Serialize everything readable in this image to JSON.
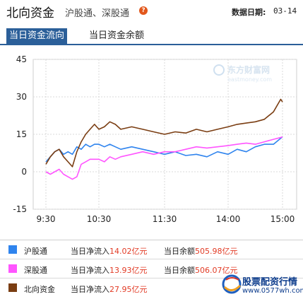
{
  "header": {
    "title": "北向资金",
    "subtitle": "沪股通、深股通",
    "help": "?",
    "date_label": "数据日期:",
    "date_value": "03-14"
  },
  "tabs": [
    {
      "label": "当日资金流向",
      "active": true
    },
    {
      "label": "当日资金余额",
      "active": false
    }
  ],
  "colors": {
    "hgt": "#2f84ee",
    "sgt": "#ff55ff",
    "north": "#7a3d12",
    "accent": "#2b5f99",
    "value_red": "#e23b25"
  },
  "watermark": {
    "brand": "东方财富网",
    "url": "eastmoney.com"
  },
  "chart_data": {
    "type": "line",
    "xlabel": "",
    "ylabel": "",
    "x_ticks": [
      "9:30",
      "10:30",
      "11:30",
      "14:00",
      "15:00"
    ],
    "y_ticks": [
      45,
      30,
      15,
      0,
      -15
    ],
    "ylim": [
      -15,
      45
    ],
    "grid": true,
    "series": [
      {
        "name": "沪股通",
        "color": "#2f84ee",
        "points": [
          [
            0,
            4
          ],
          [
            5,
            6
          ],
          [
            10,
            8
          ],
          [
            15,
            9
          ],
          [
            20,
            7
          ],
          [
            25,
            8
          ],
          [
            30,
            7
          ],
          [
            35,
            10
          ],
          [
            40,
            9
          ],
          [
            45,
            11
          ],
          [
            50,
            10
          ],
          [
            55,
            11
          ],
          [
            60,
            11
          ],
          [
            65,
            10
          ],
          [
            70,
            11
          ],
          [
            75,
            10
          ],
          [
            80,
            9
          ],
          [
            90,
            10
          ],
          [
            100,
            9
          ],
          [
            110,
            8
          ],
          [
            120,
            7
          ],
          [
            130,
            8
          ],
          [
            140,
            6.5
          ],
          [
            150,
            7
          ],
          [
            160,
            6
          ],
          [
            170,
            8
          ],
          [
            180,
            7
          ],
          [
            190,
            9
          ],
          [
            200,
            8
          ],
          [
            210,
            10
          ],
          [
            220,
            11
          ],
          [
            230,
            11
          ],
          [
            240,
            14.02
          ]
        ]
      },
      {
        "name": "深股通",
        "color": "#ff55ff",
        "points": [
          [
            0,
            0
          ],
          [
            5,
            -1
          ],
          [
            10,
            0
          ],
          [
            15,
            1
          ],
          [
            20,
            -1
          ],
          [
            25,
            -2
          ],
          [
            30,
            -3
          ],
          [
            35,
            -2
          ],
          [
            40,
            3
          ],
          [
            45,
            4
          ],
          [
            50,
            5
          ],
          [
            55,
            5
          ],
          [
            60,
            5
          ],
          [
            65,
            4
          ],
          [
            70,
            6
          ],
          [
            75,
            5
          ],
          [
            80,
            6
          ],
          [
            90,
            7
          ],
          [
            100,
            8
          ],
          [
            110,
            7
          ],
          [
            120,
            8
          ],
          [
            130,
            8
          ],
          [
            140,
            9
          ],
          [
            150,
            10
          ],
          [
            160,
            9.5
          ],
          [
            170,
            10
          ],
          [
            180,
            10.5
          ],
          [
            190,
            11
          ],
          [
            200,
            11.5
          ],
          [
            210,
            11
          ],
          [
            220,
            12
          ],
          [
            230,
            13
          ],
          [
            240,
            13.93
          ]
        ]
      },
      {
        "name": "北向资金",
        "color": "#7a3d12",
        "points": [
          [
            0,
            3
          ],
          [
            5,
            6
          ],
          [
            10,
            8
          ],
          [
            15,
            9
          ],
          [
            20,
            6
          ],
          [
            25,
            4
          ],
          [
            30,
            2
          ],
          [
            35,
            8
          ],
          [
            40,
            12
          ],
          [
            45,
            15
          ],
          [
            50,
            17
          ],
          [
            55,
            19
          ],
          [
            60,
            17
          ],
          [
            65,
            18
          ],
          [
            70,
            20
          ],
          [
            75,
            19
          ],
          [
            80,
            17
          ],
          [
            90,
            18
          ],
          [
            100,
            17
          ],
          [
            110,
            16
          ],
          [
            120,
            15
          ],
          [
            130,
            16
          ],
          [
            140,
            15.5
          ],
          [
            150,
            17
          ],
          [
            160,
            16
          ],
          [
            170,
            17
          ],
          [
            180,
            18
          ],
          [
            190,
            19
          ],
          [
            200,
            19.5
          ],
          [
            210,
            20
          ],
          [
            220,
            21
          ],
          [
            230,
            24
          ],
          [
            238,
            29
          ],
          [
            240,
            27.95
          ]
        ]
      }
    ]
  },
  "legend": [
    {
      "name": "沪股通",
      "flow_label": "当日净流入",
      "flow_value": "14.02亿元",
      "balance_label": "当日余额",
      "balance_value": "505.98亿元",
      "color": "#2f84ee"
    },
    {
      "name": "深股通",
      "flow_label": "当日净流入",
      "flow_value": "13.93亿元",
      "balance_label": "当日余额",
      "balance_value": "506.07亿元",
      "color": "#ff55ff"
    },
    {
      "name": "北向资金",
      "flow_label": "当日净流入",
      "flow_value": "27.95亿元",
      "color": "#7a3d12"
    }
  ],
  "logo": {
    "name": "股票配资行情",
    "url": "www.0577wh.com"
  }
}
